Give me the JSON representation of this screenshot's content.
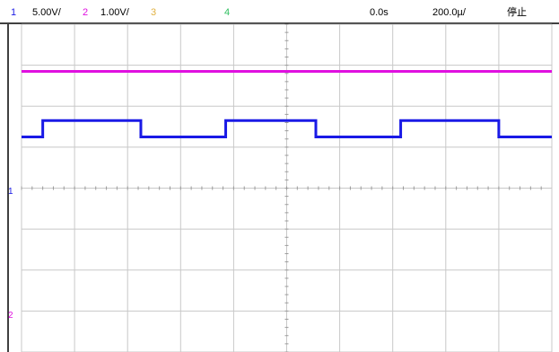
{
  "status_bar": {
    "ch1_number": "1",
    "ch1_scale": "5.00V/",
    "ch2_number": "2",
    "ch2_scale": "1.00V/",
    "ch3_number": "3",
    "ch4_number": "4",
    "trigger_delay": "0.0s",
    "time_scale": "200.0µ/",
    "run_state": "停止"
  },
  "markers": {
    "ch1_marker": "1",
    "ch2_marker": "2"
  },
  "colors": {
    "ch1": "#1a1ae6",
    "ch2": "#e010e0",
    "ch3": "#e0b040",
    "ch4": "#30c060",
    "grid": "#c8c8c8",
    "grid_dots": "#9a9a9a",
    "frame": "#000000"
  },
  "chart_data": {
    "type": "line",
    "x_divisions": 10,
    "y_divisions": 8,
    "series": [
      {
        "name": "1",
        "kind": "square_wave",
        "color_key": "ch1",
        "high_div": 1.65,
        "low_div": 1.25,
        "transitions_div": [
          0.4,
          2.25,
          3.85,
          5.55,
          7.15,
          9.0
        ]
      },
      {
        "name": "2",
        "kind": "flat",
        "color_key": "ch2",
        "level_div": 2.85
      }
    ]
  }
}
